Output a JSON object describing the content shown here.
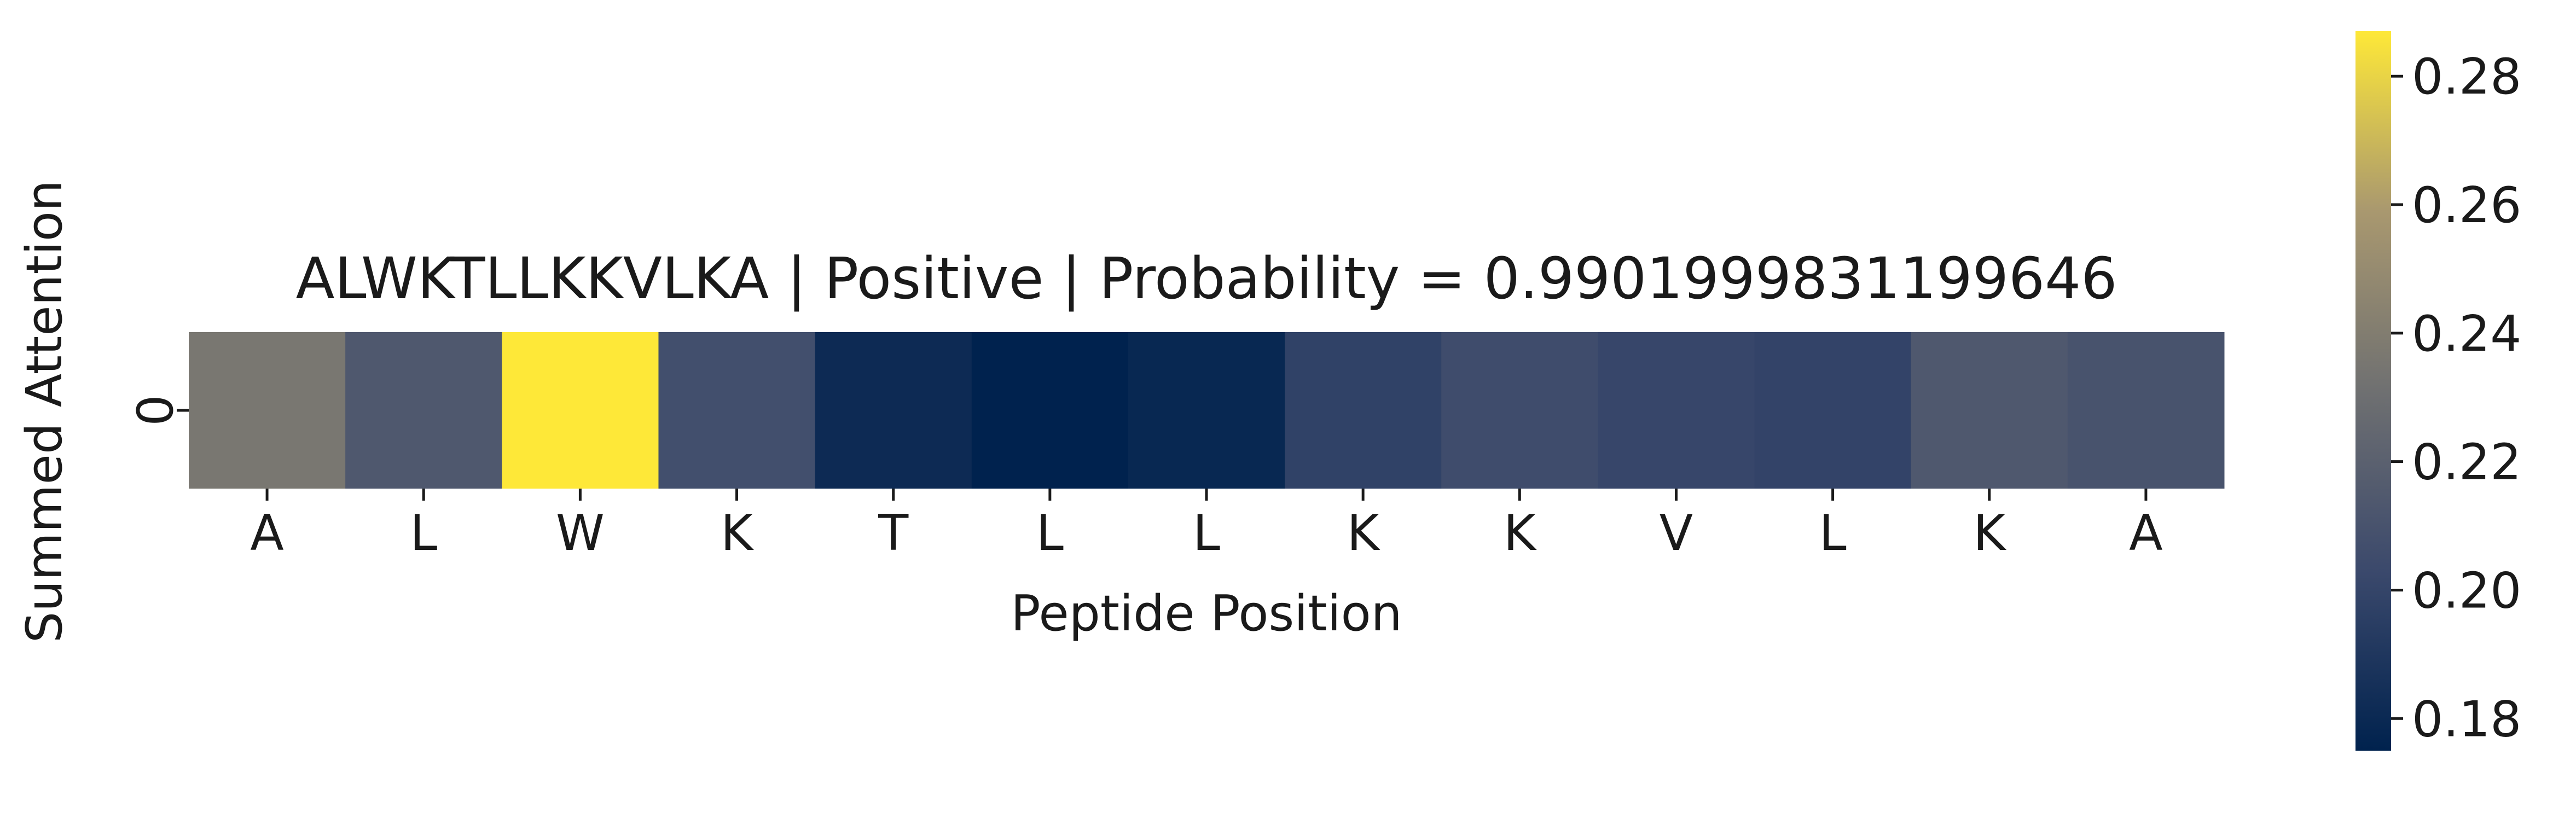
{
  "chart_data": {
    "type": "heatmap",
    "title": "ALWKTLLKKVLKA | Positive | Probability = 0.9901999831199646",
    "xlabel": "Peptide Position",
    "ylabel": "Summed Attention",
    "x_categories": [
      "A",
      "L",
      "W",
      "K",
      "T",
      "L",
      "L",
      "K",
      "K",
      "V",
      "L",
      "K",
      "A"
    ],
    "y_categories": [
      "0"
    ],
    "values": [
      [
        0.236,
        0.214,
        0.287,
        0.207,
        0.181,
        0.175,
        0.179,
        0.198,
        0.205,
        0.201,
        0.199,
        0.214,
        0.21
      ]
    ],
    "colormap": "cividis",
    "colorbar": {
      "vmin": 0.175,
      "vmax": 0.287,
      "ticks": [
        0.18,
        0.2,
        0.22,
        0.24,
        0.26,
        0.28
      ],
      "tick_labels": [
        "0.18",
        "0.20",
        "0.22",
        "0.24",
        "0.26",
        "0.28"
      ]
    },
    "grid": false
  }
}
